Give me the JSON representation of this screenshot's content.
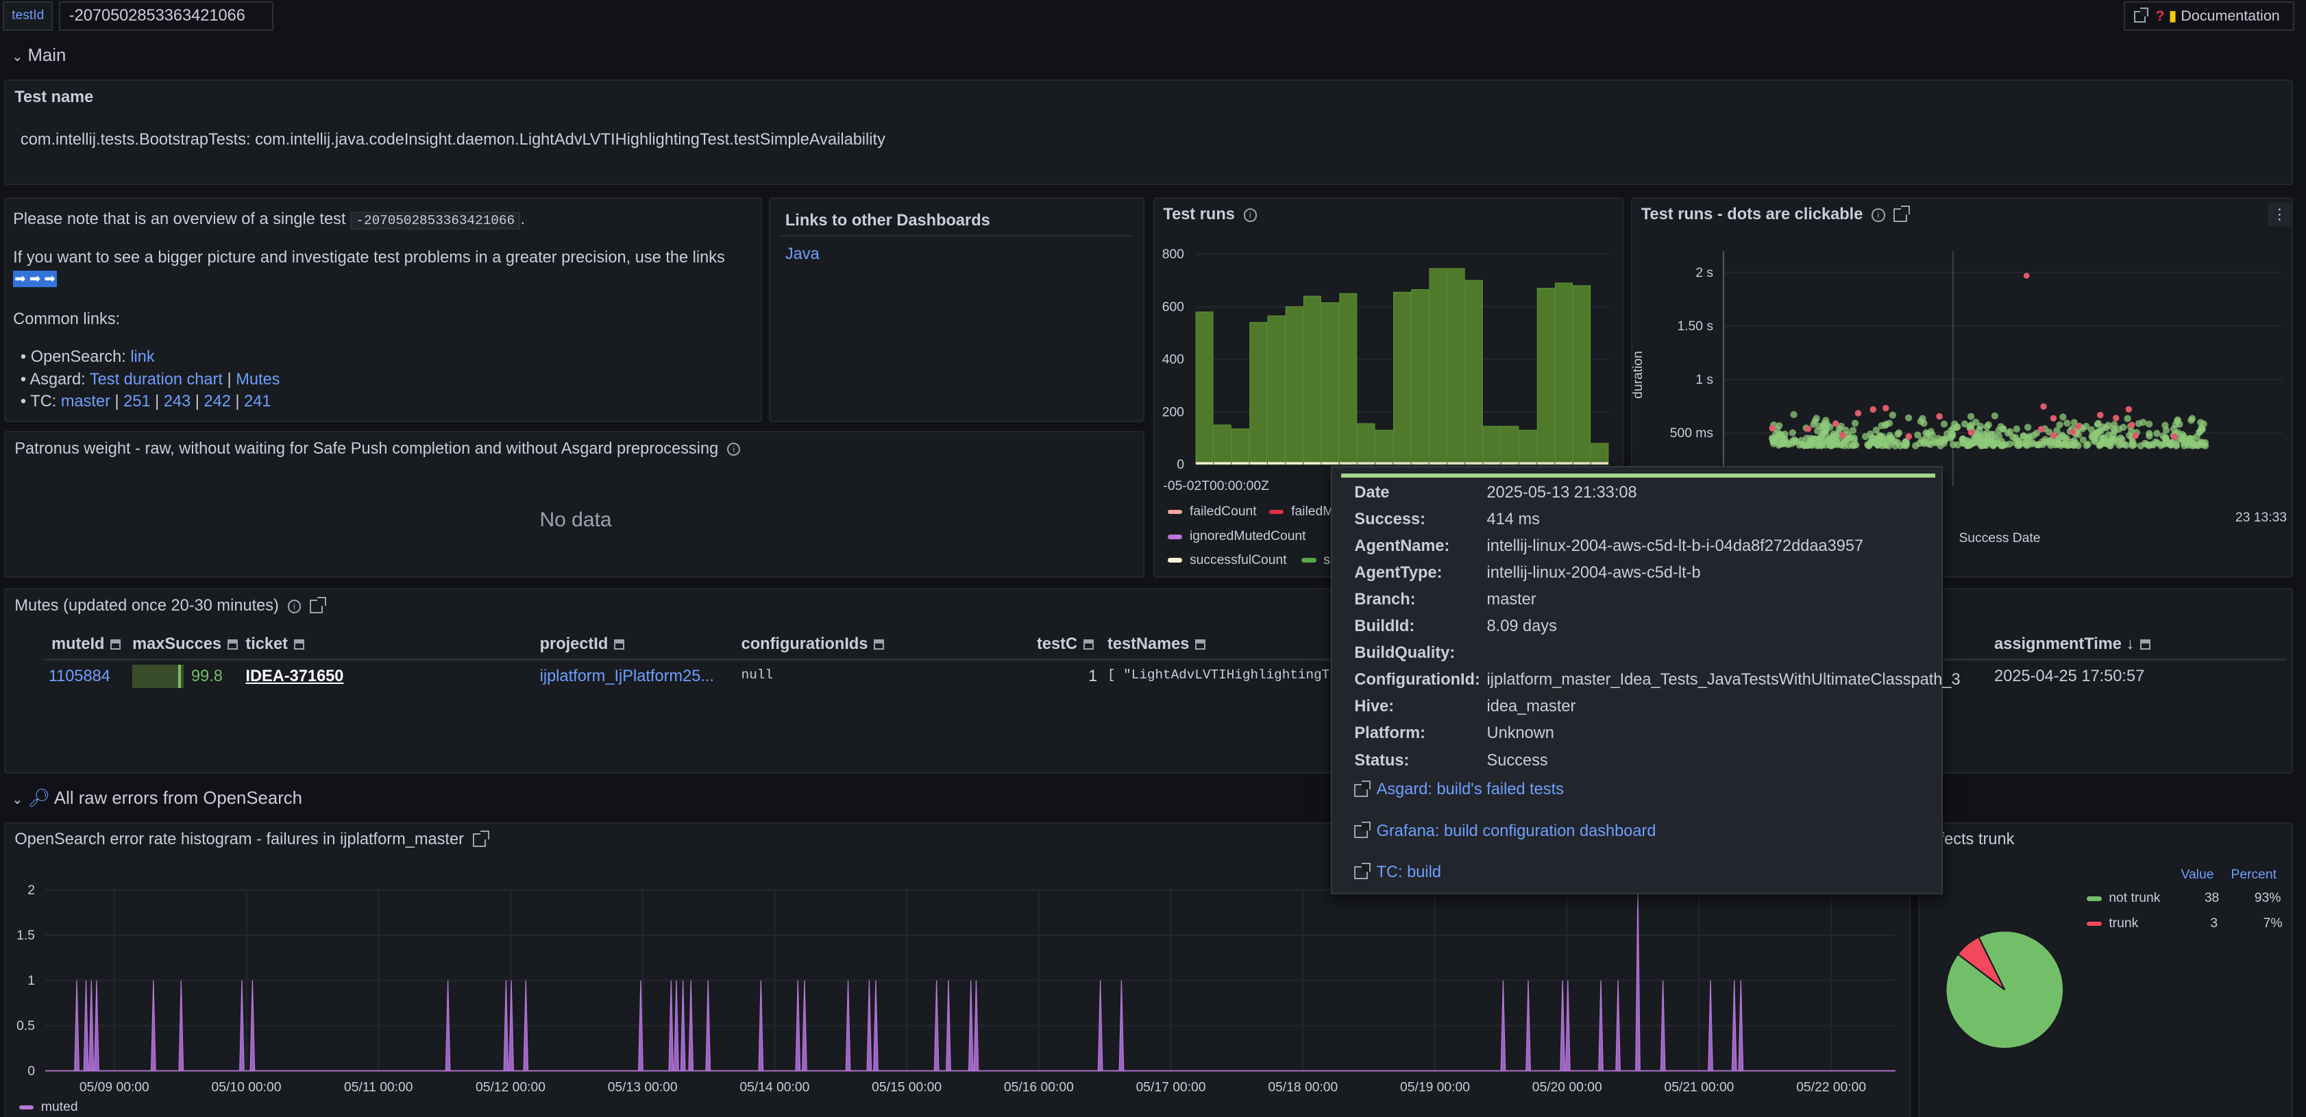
{
  "topbar": {
    "var_label": "testId",
    "var_value": "-2070502853363421066",
    "doc_label": "Documentation"
  },
  "main_section": {
    "title": "Main"
  },
  "test_name": {
    "title": "Test name",
    "value": "com.intellij.tests.BootstrapTests: com.intellij.java.codeInsight.daemon.LightAdvLVTIHighlightingTest.testSimpleAvailability"
  },
  "overview": {
    "line1_prefix": "Please note that is an overview of a single test",
    "line1_code": "-2070502853363421066",
    "line1_suffix": ".",
    "line2": "If you want to see a bigger picture and investigate test problems in a greater precision, use the links",
    "arrows": "➡ ➡ ➡",
    "common_links": "Common links:",
    "items": {
      "opensearch_label": "OpenSearch:",
      "opensearch_link": "link",
      "asgard_label": "Asgard:",
      "asgard_link1": "Test duration chart",
      "asgard_sep": "|",
      "asgard_link2": "Mutes",
      "tc_label": "TC:",
      "tc_links": [
        "master",
        "251",
        "243",
        "242",
        "241"
      ]
    }
  },
  "links_panel": {
    "title": "Links to other Dashboards",
    "item": "Java"
  },
  "patronus": {
    "title": "Patronus weight - raw, without waiting for Safe Push completion and without Asgard preprocessing",
    "empty": "No data"
  },
  "test_runs": {
    "title": "Test runs",
    "x_tick": "-05-02T00:00:00Z",
    "legend": [
      "failedCount",
      "failedM",
      "ignoredMutedCount",
      "successfulCount",
      "su"
    ],
    "legend_colors": [
      "#f2a7a0",
      "#e02f44",
      "#b877d9",
      "#fff6d9",
      "#5794f2"
    ]
  },
  "test_runs_dots": {
    "title": "Test runs - dots are clickable",
    "y_label": "duration",
    "x_label": "Success Date",
    "y_ticks": [
      "2 s",
      "1.50 s",
      "1 s",
      "500 ms"
    ],
    "x_tail": "23 13:33"
  },
  "tooltip": {
    "rows": [
      {
        "k": "Date",
        "v": "2025-05-13 21:33:08"
      },
      {
        "k": "Success:",
        "v": "414 ms"
      },
      {
        "k": "AgentName:",
        "v": "intellij-linux-2004-aws-c5d-lt-b-i-04da8f272ddaa3957"
      },
      {
        "k": "AgentType:",
        "v": "intellij-linux-2004-aws-c5d-lt-b"
      },
      {
        "k": "Branch:",
        "v": "master"
      },
      {
        "k": "BuildId:",
        "v": "8.09 days"
      },
      {
        "k": "BuildQuality:",
        "v": ""
      },
      {
        "k": "ConfigurationId:",
        "v": "ijplatform_master_Idea_Tests_JavaTestsWithUltimateClasspath_3"
      },
      {
        "k": "Hive:",
        "v": "idea_master"
      },
      {
        "k": "Platform:",
        "v": "Unknown"
      },
      {
        "k": "Status:",
        "v": "Success"
      }
    ],
    "links": [
      "Asgard: build's failed tests",
      "Grafana: build configuration dashboard",
      "TC: build"
    ]
  },
  "mutes": {
    "title": "Mutes (updated once 20-30 minutes)",
    "headers": {
      "muteId": "muteId",
      "maxSucces": "maxSucces",
      "ticket": "ticket",
      "projectId": "projectId",
      "configurationIds": "configurationIds",
      "testC": "testC",
      "testNames": "testNames",
      "assignmentTime": "assignmentTime"
    },
    "row": {
      "muteId": "1105884",
      "maxSucces": "99.8",
      "maxSucces_fraction": 0.998,
      "ticket": "IDEA-371650",
      "projectId": "ijplatform_IjPlatform25...",
      "configurationIds": "null",
      "testC": "1",
      "testNames": "[ \"LightAdvLVTIHighlightingT",
      "assignmentTime": "2025-04-25 17:50:57"
    }
  },
  "opensearch_section": {
    "title": "All raw errors from OpenSearch"
  },
  "histogram": {
    "title": "OpenSearch error rate histogram - failures in ijplatform_master",
    "legend": "muted",
    "y_ticks": [
      "2",
      "1.5",
      "1",
      "0.5",
      "0"
    ],
    "x_ticks": [
      "05/09 00:00",
      "05/10 00:00",
      "05/11 00:00",
      "05/12 00:00",
      "05/13 00:00",
      "05/14 00:00",
      "05/15 00:00",
      "05/16 00:00",
      "05/17 00:00",
      "05/18 00:00",
      "05/19 00:00",
      "05/20 00:00",
      "05/21 00:00",
      "05/22 00:00"
    ]
  },
  "pie": {
    "title": "fects trunk",
    "col_value": "Value",
    "col_percent": "Percent",
    "rows": [
      {
        "label": "not trunk",
        "value": "38",
        "percent": "93%",
        "color": "#73bf69"
      },
      {
        "label": "trunk",
        "value": "3",
        "percent": "7%",
        "color": "#f2495c"
      }
    ]
  },
  "chart_data": [
    {
      "type": "bar",
      "title": "Test runs",
      "ylim": [
        0,
        800
      ],
      "y_ticks": [
        0,
        200,
        400,
        600,
        800
      ],
      "series": [
        {
          "name": "successfulCount",
          "values": [
            580,
            150,
            135,
            540,
            565,
            600,
            640,
            615,
            650,
            155,
            130,
            655,
            665,
            745,
            745,
            700,
            145,
            145,
            130,
            670,
            690,
            680,
            80
          ]
        }
      ]
    },
    {
      "type": "scatter",
      "title": "Test runs - dots are clickable",
      "ylabel": "duration",
      "xlabel": "Success Date",
      "ylim": [
        0,
        2200
      ]
    },
    {
      "type": "area",
      "title": "OpenSearch error rate histogram - failures in ijplatform_master",
      "ylim": [
        0,
        2
      ],
      "series": [
        {
          "name": "muted",
          "spikes_days_offset": [
            0.05,
            0.12,
            0.16,
            0.2,
            0.63,
            0.84,
            1.3,
            1.38,
            2.86,
            3.3,
            3.34,
            3.45,
            4.32,
            4.55,
            4.59,
            4.64,
            4.7,
            4.83,
            5.23,
            5.51,
            5.56,
            5.89,
            6.05,
            6.1,
            6.56,
            6.65,
            6.82,
            6.86,
            7.8,
            7.96,
            10.85,
            11.04,
            11.3,
            11.34,
            11.59,
            11.72,
            11.87,
            12.06,
            12.42,
            12.6,
            12.65
          ],
          "spike_heights": [
            1,
            1,
            1,
            1,
            1,
            1,
            1,
            1,
            1,
            1,
            1,
            1,
            1,
            1,
            1,
            1,
            1,
            1,
            1,
            1,
            1,
            1,
            1,
            1,
            1,
            1,
            1,
            1,
            1,
            1,
            1,
            1,
            1,
            1,
            1,
            1,
            2,
            1,
            1,
            1,
            1
          ]
        }
      ]
    },
    {
      "type": "pie",
      "categories": [
        "not trunk",
        "trunk"
      ],
      "values": [
        38,
        3
      ]
    }
  ]
}
